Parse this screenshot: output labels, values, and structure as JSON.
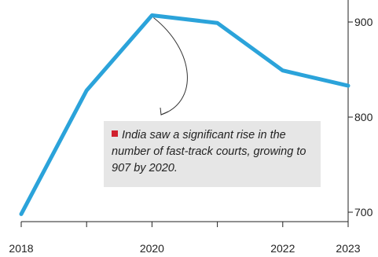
{
  "chart_data": {
    "type": "line",
    "x": [
      2018,
      2019,
      2020,
      2021,
      2022,
      2023
    ],
    "series": [
      {
        "values": [
          698,
          828,
          907,
          899,
          849,
          833
        ]
      }
    ],
    "xticks": [
      "2018",
      "2020",
      "2022",
      "2023"
    ],
    "yticks": [
      "700",
      "800",
      "900"
    ],
    "ylim": [
      680,
      925
    ],
    "xlim": [
      2018,
      2023
    ],
    "y_axis_position": "right",
    "grid": false,
    "line_color": "#2ba3da",
    "annotation": {
      "text": "India saw a significant rise in the number of fast-track courts, growing to 907 by 2020.",
      "marker_color": "#d0202e",
      "points_to": {
        "x": 2020,
        "y": 907
      }
    }
  }
}
